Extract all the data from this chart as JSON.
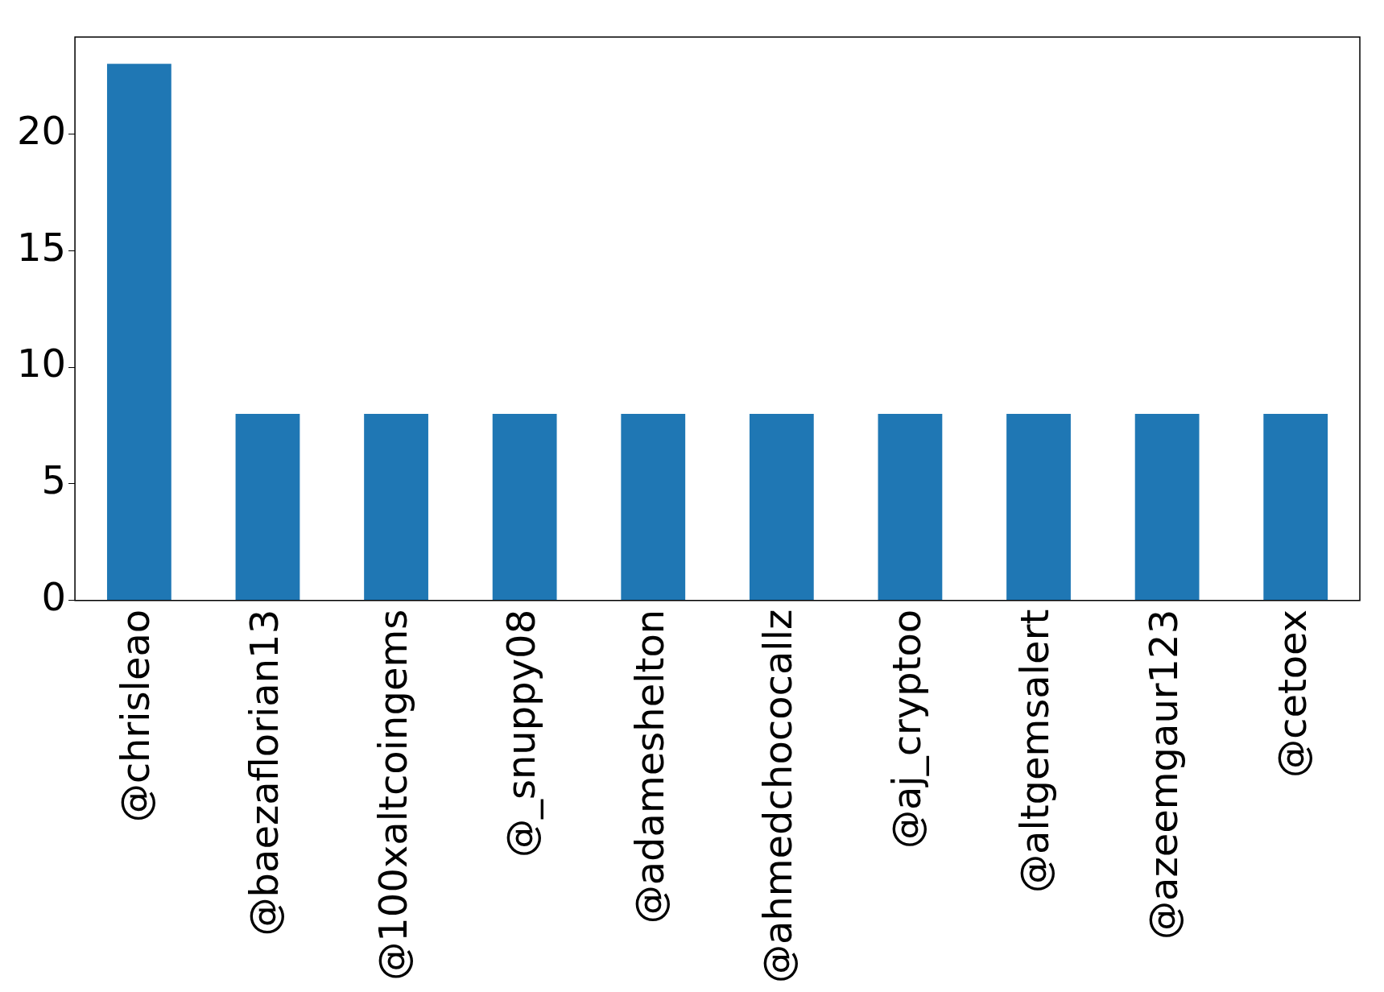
{
  "chart_data": {
    "type": "bar",
    "categories": [
      "@chrisleao",
      "@baezaflorian13",
      "@100xaltcoingems",
      "@_snuppy08",
      "@adameshelton",
      "@ahmedchococallz",
      "@aj_cryptoo",
      "@altgemsalert",
      "@azeemgaur123",
      "@cetoex"
    ],
    "values": [
      23,
      8,
      8,
      8,
      8,
      8,
      8,
      8,
      8,
      8
    ],
    "color": "#1f77b4",
    "ylim": [
      0,
      24.15
    ],
    "yticks": [
      0,
      5,
      10,
      15,
      20
    ],
    "grid": false,
    "legend": false
  }
}
